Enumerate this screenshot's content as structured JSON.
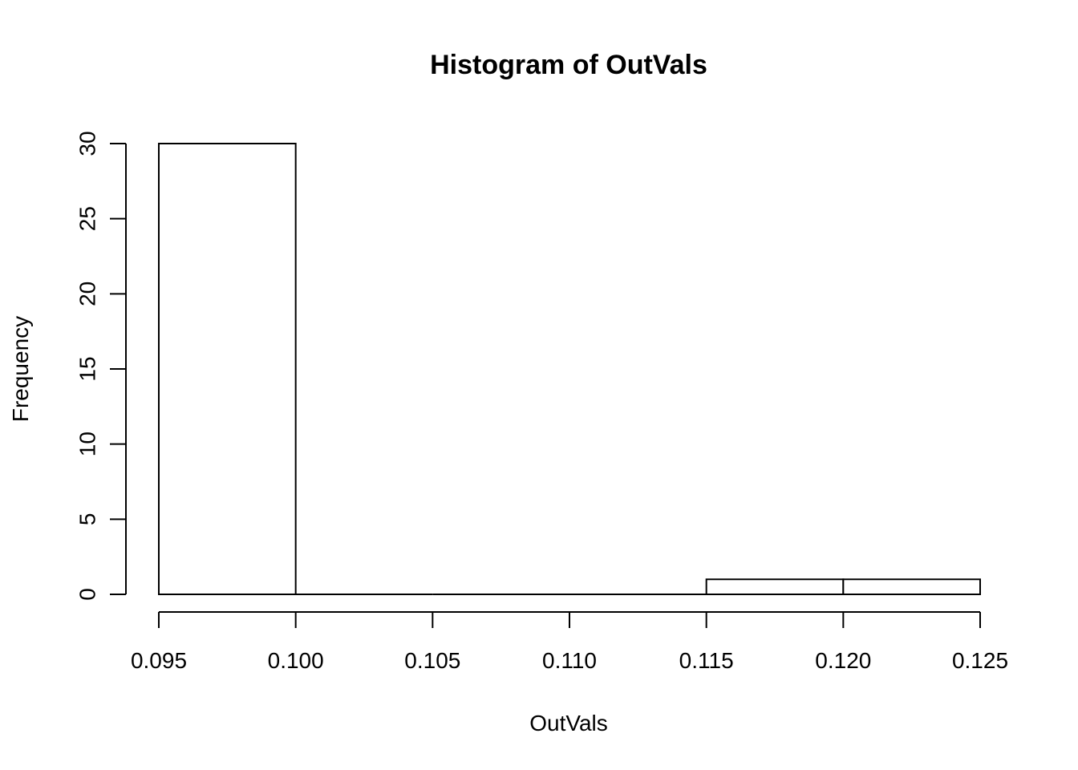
{
  "chart_data": {
    "type": "bar",
    "title": "Histogram of OutVals",
    "xlabel": "OutVals",
    "ylabel": "Frequency",
    "bins": [
      {
        "x0": 0.095,
        "x1": 0.1,
        "count": 30
      },
      {
        "x0": 0.1,
        "x1": 0.105,
        "count": 0
      },
      {
        "x0": 0.105,
        "x1": 0.11,
        "count": 0
      },
      {
        "x0": 0.11,
        "x1": 0.115,
        "count": 0
      },
      {
        "x0": 0.115,
        "x1": 0.12,
        "count": 1
      },
      {
        "x0": 0.12,
        "x1": 0.125,
        "count": 1
      }
    ],
    "xlim": [
      0.095,
      0.125
    ],
    "ylim": [
      0,
      30
    ],
    "x_ticks": [
      "0.095",
      "0.100",
      "0.105",
      "0.110",
      "0.115",
      "0.120",
      "0.125"
    ],
    "y_ticks": [
      "0",
      "5",
      "10",
      "15",
      "20",
      "25",
      "30"
    ],
    "grid": false,
    "bar_fill": "#ffffff",
    "bar_stroke": "#000000"
  }
}
